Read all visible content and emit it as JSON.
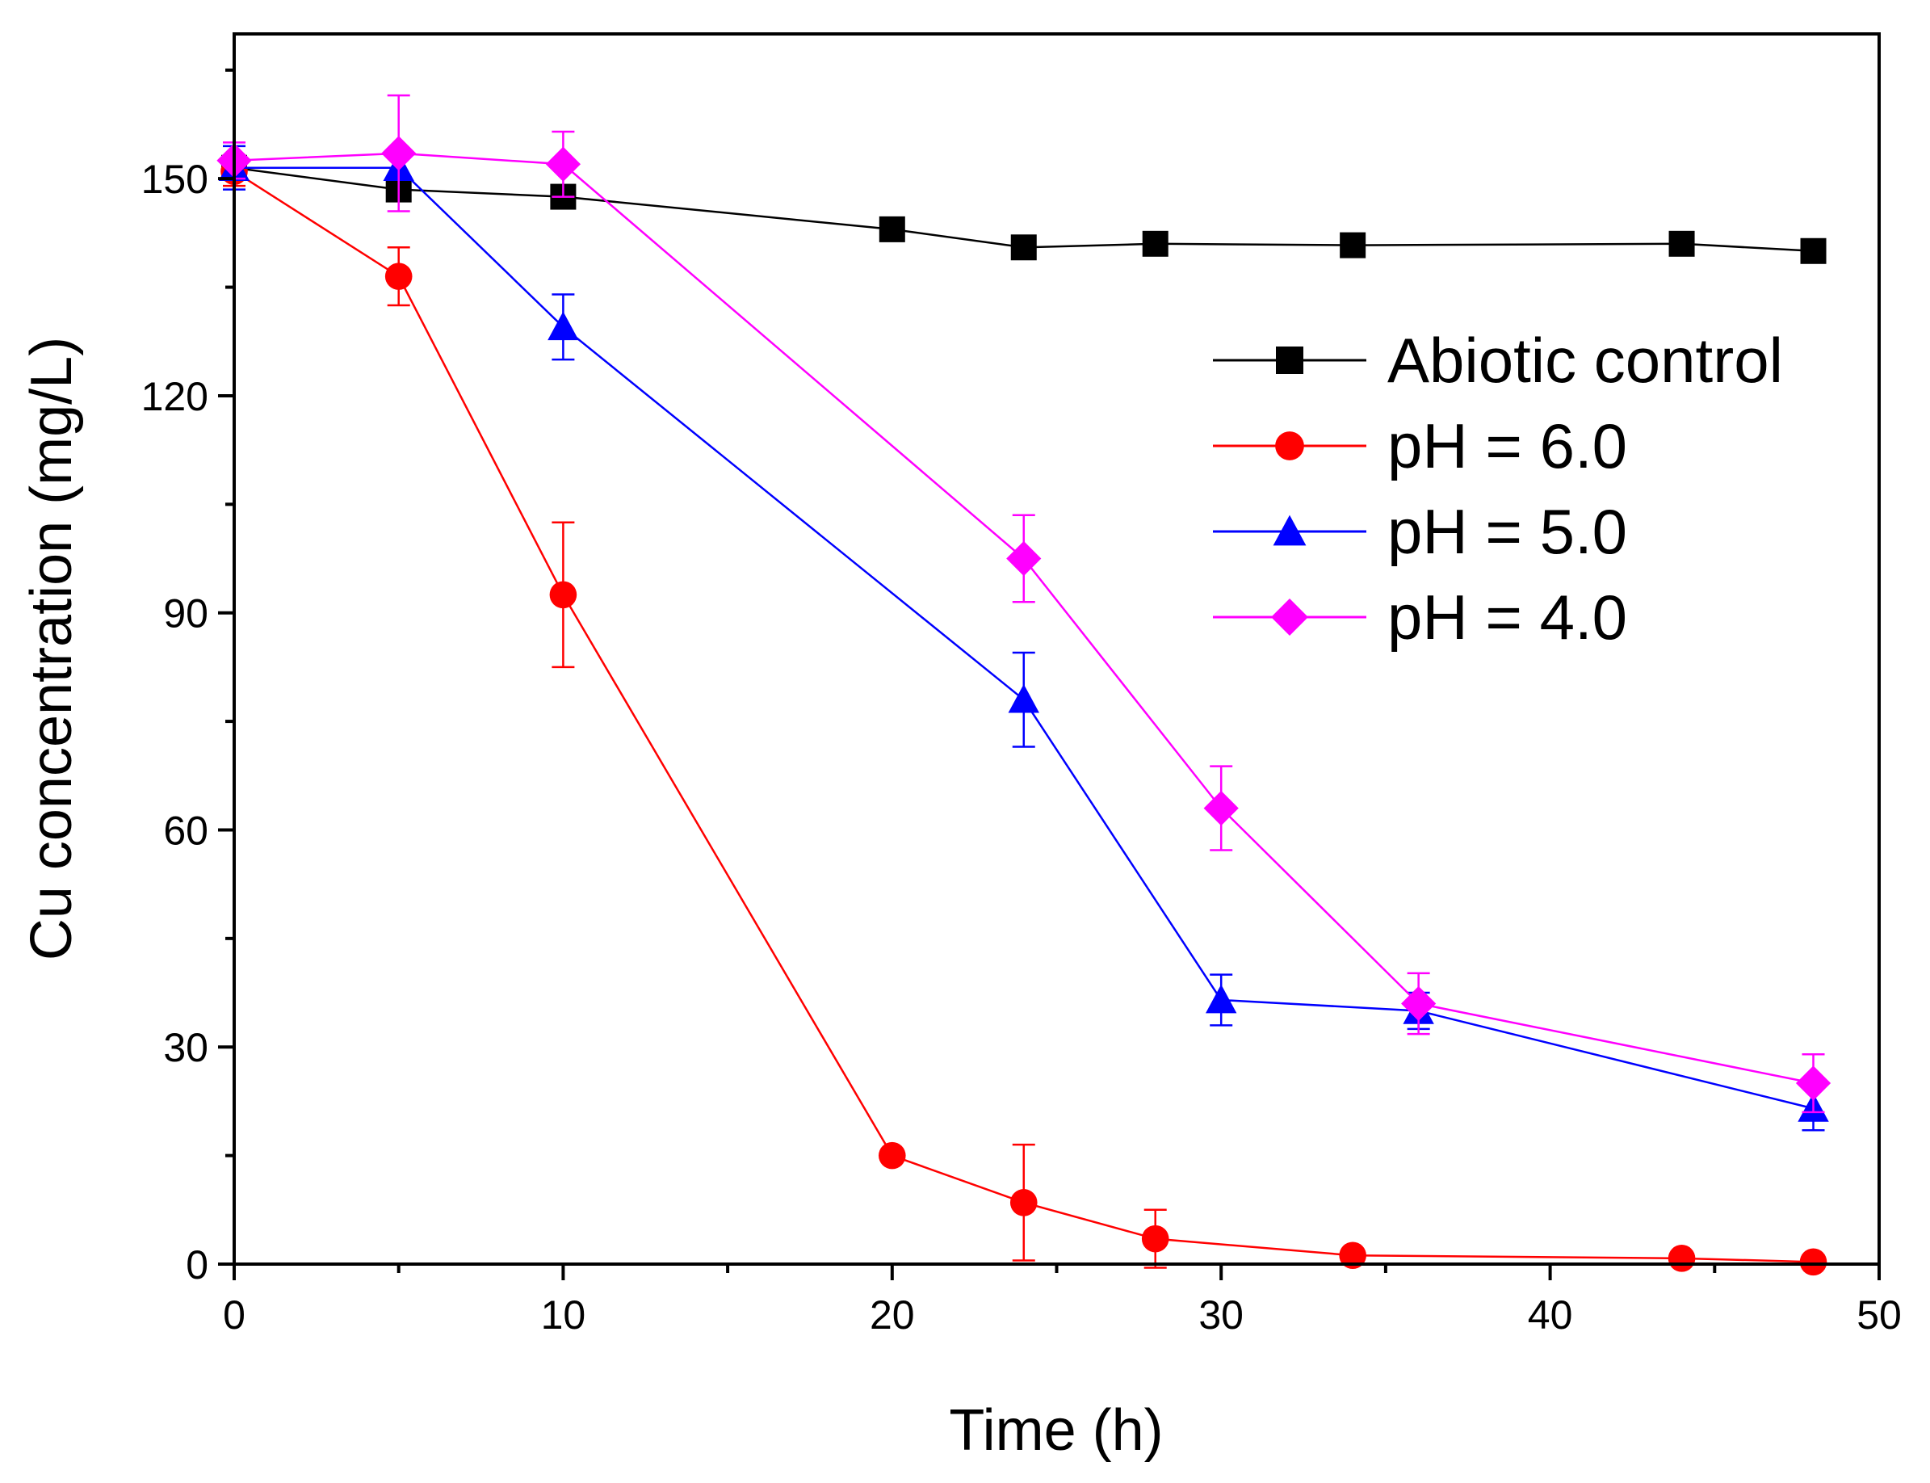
{
  "chart_data": {
    "type": "scatter",
    "title": "",
    "xlabel": "Time (h)",
    "ylabel": "Cu concentration (mg/L)",
    "xlim": [
      0,
      50
    ],
    "ylim": [
      0,
      170
    ],
    "xticks": [
      "0",
      "10",
      "20",
      "30",
      "40",
      "50"
    ],
    "yticks": [
      "0",
      "30",
      "60",
      "90",
      "120",
      "150"
    ],
    "grid": false,
    "legend_position": "right",
    "series": [
      {
        "name": "Abiotic control",
        "color": "#000000",
        "marker": "square",
        "x": [
          0,
          5,
          10,
          20,
          24,
          28,
          34,
          44,
          48
        ],
        "y": [
          151.5,
          148.5,
          147.5,
          143,
          140.5,
          141,
          140.8,
          141,
          140
        ],
        "err": [
          0,
          0,
          0,
          0,
          0,
          0,
          0,
          0,
          0
        ]
      },
      {
        "name": "pH = 6.0",
        "color": "#ff0000",
        "marker": "circle",
        "x": [
          0,
          5,
          10,
          20,
          24,
          28,
          34,
          44,
          48
        ],
        "y": [
          151,
          136.5,
          92.5,
          15,
          8.5,
          3.5,
          1.2,
          0.8,
          0.3
        ],
        "err": [
          2,
          4,
          10,
          0,
          8,
          4,
          0,
          0,
          0
        ]
      },
      {
        "name": "pH = 5.0",
        "color": "#0000ff",
        "marker": "triangle",
        "x": [
          0,
          5,
          10,
          24,
          30,
          36,
          48
        ],
        "y": [
          151.5,
          151.5,
          129.5,
          78,
          36.5,
          35,
          21.5
        ],
        "err": [
          3,
          0,
          4.5,
          6.5,
          3.5,
          2.5,
          3
        ]
      },
      {
        "name": "pH = 4.0",
        "color": "#ff00ff",
        "marker": "diamond",
        "x": [
          0,
          5,
          10,
          24,
          30,
          36,
          48
        ],
        "y": [
          152.5,
          153.5,
          152,
          97.5,
          63,
          36,
          25
        ],
        "err": [
          2.5,
          8,
          4.5,
          6,
          5.8,
          4.2,
          4
        ]
      }
    ]
  }
}
